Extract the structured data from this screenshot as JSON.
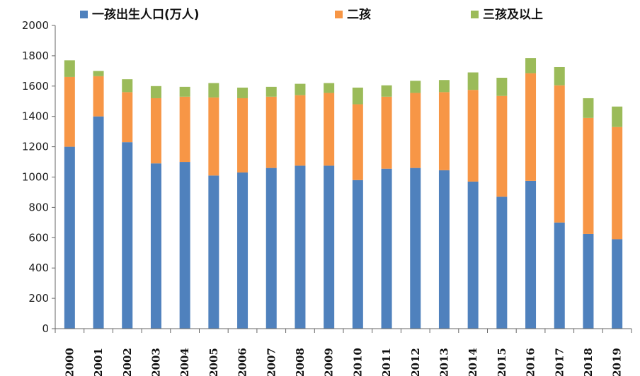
{
  "chart_data": {
    "type": "bar",
    "stacked": true,
    "categories": [
      "2000",
      "2001",
      "2002",
      "2003",
      "2004",
      "2005",
      "2006",
      "2007",
      "2008",
      "2009",
      "2010",
      "2011",
      "2012",
      "2013",
      "2014",
      "2015",
      "2016",
      "2017",
      "2018",
      "2019"
    ],
    "series": [
      {
        "name": "一孩出生人口(万人)",
        "color": "#4F81BD",
        "values": [
          1200,
          1400,
          1230,
          1090,
          1100,
          1010,
          1030,
          1060,
          1075,
          1075,
          980,
          1055,
          1060,
          1045,
          970,
          870,
          975,
          700,
          625,
          590
        ]
      },
      {
        "name": "二孩",
        "color": "#F79646",
        "values": [
          460,
          265,
          330,
          430,
          430,
          515,
          490,
          470,
          465,
          480,
          500,
          475,
          495,
          515,
          605,
          665,
          710,
          905,
          765,
          740
        ]
      },
      {
        "name": "三孩及以上",
        "color": "#9BBB59",
        "values": [
          110,
          35,
          85,
          80,
          65,
          95,
          70,
          65,
          75,
          65,
          110,
          75,
          80,
          80,
          115,
          120,
          100,
          120,
          130,
          135
        ]
      }
    ],
    "ylim": [
      0,
      2000
    ],
    "yticks": [
      0,
      200,
      400,
      600,
      800,
      1000,
      1200,
      1400,
      1600,
      1800,
      2000
    ],
    "legend_position": "top",
    "grid": false
  }
}
